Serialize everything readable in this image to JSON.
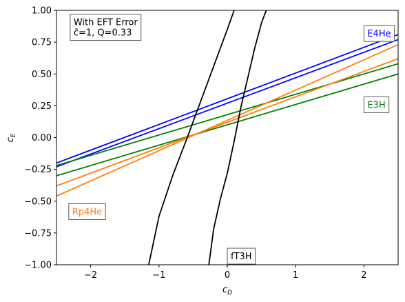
{
  "chart_data": {
    "type": "line",
    "xlabel": "c",
    "xlabel_sub": "D",
    "ylabel": "c",
    "ylabel_sub": "E",
    "xlim": [
      -2.5,
      2.5
    ],
    "ylim": [
      -1.0,
      1.0
    ],
    "xticks": [
      -2,
      -1,
      0,
      1,
      2
    ],
    "xtick_labels": [
      "−2",
      "−1",
      "0",
      "1",
      "2"
    ],
    "yticks": [
      -1.0,
      -0.75,
      -0.5,
      -0.25,
      0.0,
      0.25,
      0.5,
      0.75,
      1.0
    ],
    "ytick_labels": [
      "−1.00",
      "−0.75",
      "−0.50",
      "−0.25",
      "0.00",
      "0.25",
      "0.50",
      "0.75",
      "1.00"
    ],
    "grid": false,
    "series": [
      {
        "group": "E4He",
        "color": "#0000ff",
        "x": [
          -2.5,
          2.5
        ],
        "y": [
          -0.2,
          0.81
        ]
      },
      {
        "group": "E4He",
        "color": "#0000ff",
        "x": [
          -2.5,
          2.5
        ],
        "y": [
          -0.23,
          0.77
        ]
      },
      {
        "group": "E3H",
        "color": "#008000",
        "x": [
          -2.5,
          2.5
        ],
        "y": [
          -0.22,
          0.58
        ]
      },
      {
        "group": "E3H",
        "color": "#008000",
        "x": [
          -2.5,
          2.5
        ],
        "y": [
          -0.3,
          0.5
        ]
      },
      {
        "group": "Rp4He",
        "color": "#ff7f0e",
        "x": [
          -2.5,
          2.5
        ],
        "y": [
          -0.38,
          0.62
        ]
      },
      {
        "group": "Rp4He",
        "color": "#ff7f0e",
        "x": [
          -2.5,
          2.5
        ],
        "y": [
          -0.46,
          0.73
        ]
      },
      {
        "group": "fT3H",
        "color": "#000000",
        "x": [
          -1.15,
          -1.0,
          -0.8,
          -0.6,
          -0.4,
          -0.2,
          0.0,
          0.1
        ],
        "y": [
          -1.0,
          -0.62,
          -0.3,
          -0.02,
          0.27,
          0.56,
          0.85,
          1.0
        ]
      },
      {
        "group": "fT3H",
        "color": "#000000",
        "x": [
          -0.27,
          -0.2,
          -0.1,
          0.0,
          0.1,
          0.2,
          0.3,
          0.4,
          0.5,
          0.57
        ],
        "y": [
          -1.0,
          -0.72,
          -0.48,
          -0.28,
          -0.03,
          0.24,
          0.47,
          0.7,
          0.9,
          1.0
        ]
      }
    ],
    "annotations": [
      {
        "id": "eft-box",
        "lines": [
          "With EFT Error",
          "c̄=1, Q=0.33"
        ],
        "color": "#000000",
        "x": -2.3,
        "y": 0.97
      },
      {
        "id": "label-e4he",
        "lines": [
          "E4He"
        ],
        "color": "#0000ff",
        "x": 2.0,
        "y": 0.88
      },
      {
        "id": "label-e3h",
        "lines": [
          "E3H"
        ],
        "color": "#008000",
        "x": 2.0,
        "y": 0.32
      },
      {
        "id": "label-rp4he",
        "lines": [
          "Rp4He"
        ],
        "color": "#ff7f0e",
        "x": -2.32,
        "y": -0.52
      },
      {
        "id": "label-ft3h",
        "lines": [
          "fT3H"
        ],
        "color": "#000000",
        "x": 0.0,
        "y": -0.87
      }
    ]
  }
}
